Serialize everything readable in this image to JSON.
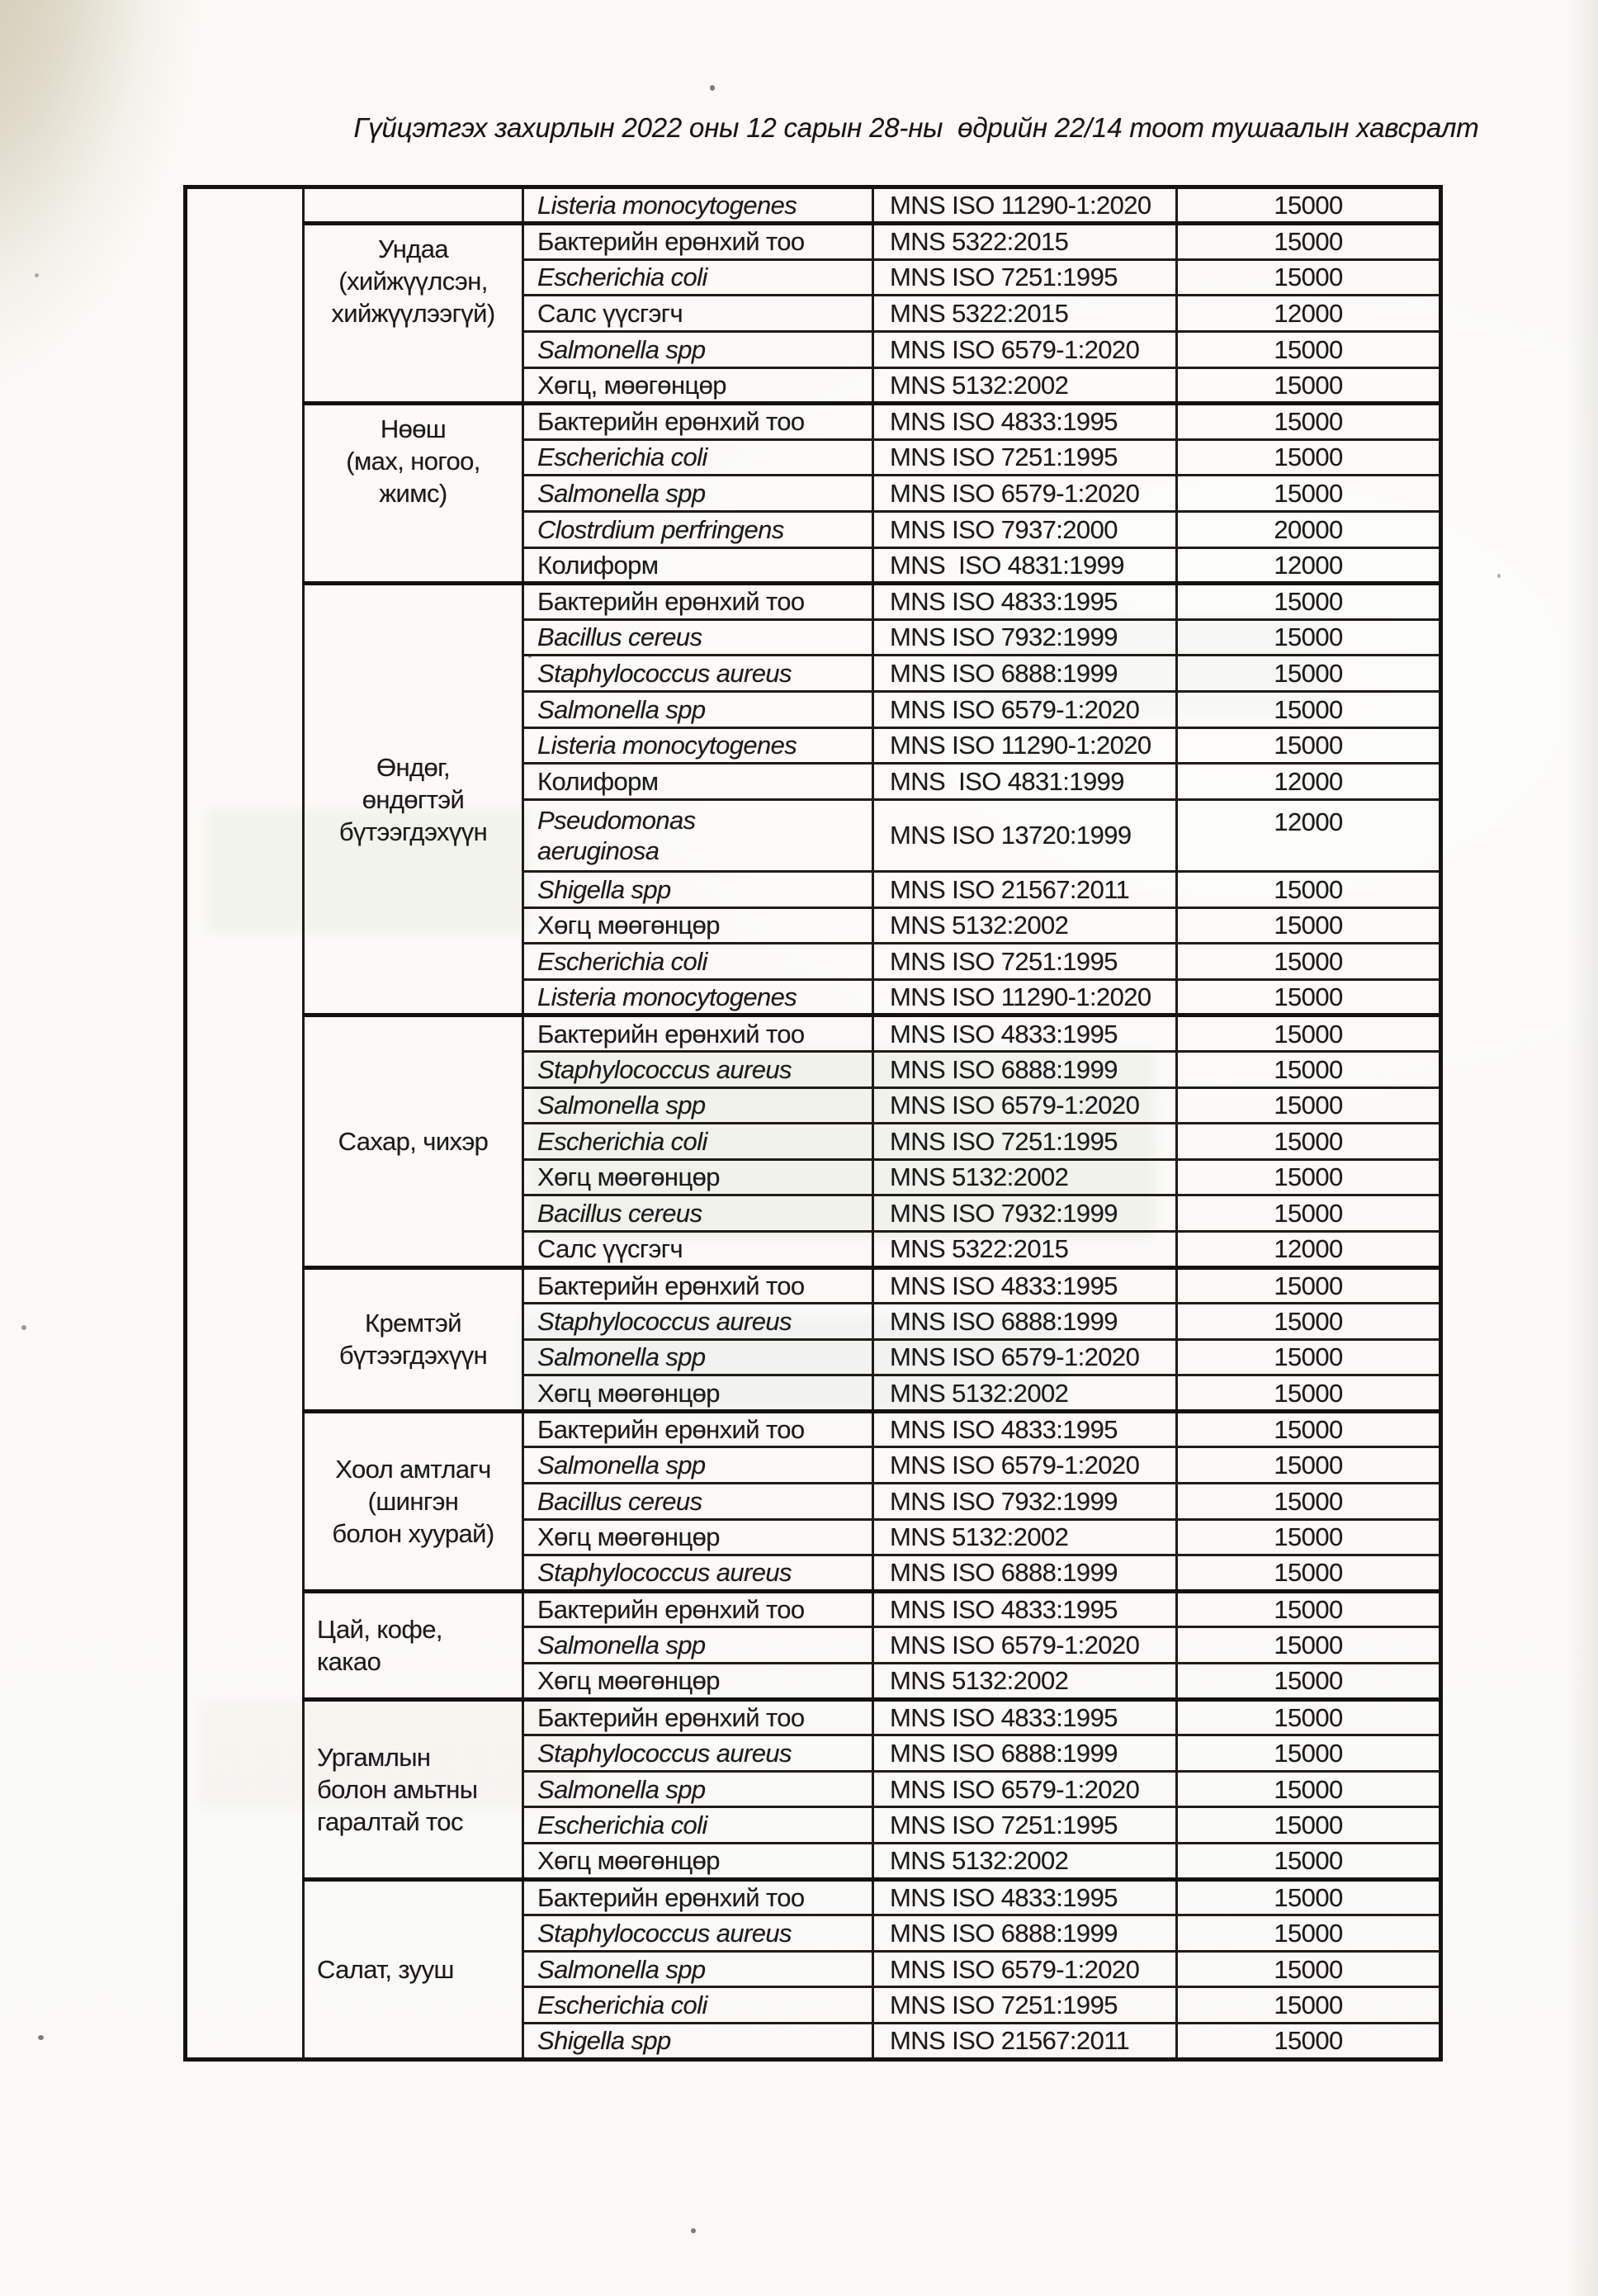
{
  "header": {
    "note": "Гүйцэтгэх захирлын 2022 оны 12 сарын 28-ны  өдрийн 22/14 тоот тушаалын хавсралт"
  },
  "table": {
    "sections": [
      {
        "category": "",
        "category_display": "",
        "rows": [
          {
            "test": "Listeria monocytogenes",
            "italic": true,
            "standard": "MNS ISO 11290-1:2020",
            "price": "15000"
          }
        ]
      },
      {
        "category": "Ундаа (хийжүүлсэн, хийжүүлээгүй)",
        "category_display": "Ундаа\n(хийжүүлсэн,\nхийжүүлээгүй)",
        "halign": "center",
        "valign": "top",
        "rows": [
          {
            "test": "Бактерийн ерөнхий тоо",
            "italic": false,
            "standard": "MNS 5322:2015",
            "price": "15000"
          },
          {
            "test": "Escherichia coli",
            "italic": true,
            "standard": "MNS ISO 7251:1995",
            "price": "15000"
          },
          {
            "test": "Салс үүсгэгч",
            "italic": false,
            "standard": "MNS 5322:2015",
            "price": "12000"
          },
          {
            "test": "Salmonella spp",
            "italic": true,
            "standard": "MNS ISO 6579-1:2020",
            "price": "15000"
          },
          {
            "test": "Хөгц, мөөгөнцөр",
            "italic": false,
            "standard": "MNS 5132:2002",
            "price": "15000"
          }
        ]
      },
      {
        "category": "Нөөш (мах, ногоо, жимс)",
        "category_display": "Нөөш\n(мах, ногоо,\nжимс)",
        "halign": "center",
        "valign": "top",
        "rows": [
          {
            "test": "Бактерийн ерөнхий тоо",
            "italic": false,
            "standard": "MNS ISO 4833:1995",
            "price": "15000"
          },
          {
            "test": "Escherichia coli",
            "italic": true,
            "standard": "MNS ISO 7251:1995",
            "price": "15000"
          },
          {
            "test": "Salmonella spp",
            "italic": true,
            "standard": "MNS ISO 6579-1:2020",
            "price": "15000"
          },
          {
            "test": "Clostrdium perfringens",
            "italic": true,
            "standard": "MNS ISO 7937:2000",
            "price": "20000"
          },
          {
            "test": "Колиформ",
            "italic": false,
            "standard": "MNS  ISO 4831:1999",
            "price": "12000"
          }
        ]
      },
      {
        "category": "Өндөг, өндөгтэй бүтээгдэхүүн",
        "category_display": "Өндөг,\nөндөгтэй\nбүтээгдэхүүн",
        "halign": "center",
        "valign": "middle",
        "rows": [
          {
            "test": "Бактерийн ерөнхий тоо",
            "italic": false,
            "standard": "MNS ISO 4833:1995",
            "price": "15000"
          },
          {
            "test": "Bacillus cereus",
            "italic": true,
            "standard": "MNS ISO 7932:1999",
            "price": "15000"
          },
          {
            "test": "Staphylococcus aureus",
            "italic": true,
            "standard": "MNS ISO 6888:1999",
            "price": "15000"
          },
          {
            "test": "Salmonella spp",
            "italic": true,
            "standard": "MNS ISO 6579-1:2020",
            "price": "15000"
          },
          {
            "test": "Listeria monocytogenes",
            "italic": true,
            "standard": "MNS ISO 11290-1:2020",
            "price": "15000"
          },
          {
            "test": "Колиформ",
            "italic": false,
            "standard": "MNS  ISO 4831:1999",
            "price": "12000"
          },
          {
            "test": "Pseudomonas aeruginosa",
            "test_display": "Pseudomonas\naeruginosa",
            "italic": true,
            "tall": true,
            "standard": "MNS ISO 13720:1999",
            "price": "12000"
          },
          {
            "test": "Shigella spp",
            "italic": true,
            "standard": "MNS ISO 21567:2011",
            "price": "15000"
          },
          {
            "test": "Хөгц мөөгөнцөр",
            "italic": false,
            "standard": "MNS 5132:2002",
            "price": "15000"
          },
          {
            "test": "Escherichia coli",
            "italic": true,
            "standard": "MNS ISO 7251:1995",
            "price": "15000"
          },
          {
            "test": "Listeria monocytogenes",
            "italic": true,
            "standard": "MNS ISO 11290-1:2020",
            "price": "15000"
          }
        ]
      },
      {
        "category": "Сахар, чихэр",
        "category_display": "Сахар, чихэр",
        "halign": "center",
        "valign": "middle",
        "rows": [
          {
            "test": "Бактерийн ерөнхий тоо",
            "italic": false,
            "standard": "MNS ISO 4833:1995",
            "price": "15000"
          },
          {
            "test": "Staphylococcus aureus",
            "italic": true,
            "standard": "MNS ISO 6888:1999",
            "price": "15000"
          },
          {
            "test": "Salmonella spp",
            "italic": true,
            "standard": "MNS ISO 6579-1:2020",
            "price": "15000"
          },
          {
            "test": "Escherichia coli",
            "italic": true,
            "standard": "MNS ISO 7251:1995",
            "price": "15000"
          },
          {
            "test": "Хөгц мөөгөнцөр",
            "italic": false,
            "standard": "MNS 5132:2002",
            "price": "15000"
          },
          {
            "test": "Bacillus cereus",
            "italic": true,
            "standard": "MNS ISO 7932:1999",
            "price": "15000"
          },
          {
            "test": "Салс үүсгэгч",
            "italic": false,
            "standard": "MNS 5322:2015",
            "price": "12000"
          }
        ]
      },
      {
        "category": "Кремтэй бүтээгдэхүүн",
        "category_display": "Кремтэй\nбүтээгдэхүүн",
        "halign": "center",
        "valign": "middle",
        "rows": [
          {
            "test": "Бактерийн ерөнхий тоо",
            "italic": false,
            "standard": "MNS ISO 4833:1995",
            "price": "15000"
          },
          {
            "test": "Staphylococcus aureus",
            "italic": true,
            "standard": "MNS ISO 6888:1999",
            "price": "15000"
          },
          {
            "test": "Salmonella spp",
            "italic": true,
            "standard": "MNS ISO 6579-1:2020",
            "price": "15000"
          },
          {
            "test": "Хөгц мөөгөнцөр",
            "italic": false,
            "standard": "MNS 5132:2002",
            "price": "15000"
          }
        ]
      },
      {
        "category": "Хоол амтлагч (шингэн болон хуурай)",
        "category_display": "Хоол амтлагч\n(шингэн\nболон хуурай)",
        "halign": "center",
        "valign": "middle",
        "rows": [
          {
            "test": "Бактерийн ерөнхий тоо",
            "italic": false,
            "standard": "MNS ISO 4833:1995",
            "price": "15000"
          },
          {
            "test": "Salmonella spp",
            "italic": true,
            "standard": "MNS ISO 6579-1:2020",
            "price": "15000"
          },
          {
            "test": "Bacillus cereus",
            "italic": true,
            "standard": "MNS ISO 7932:1999",
            "price": "15000"
          },
          {
            "test": "Хөгц мөөгөнцөр",
            "italic": false,
            "standard": "MNS 5132:2002",
            "price": "15000"
          },
          {
            "test": "Staphylococcus aureus",
            "italic": true,
            "standard": "MNS ISO 6888:1999",
            "price": "15000"
          }
        ]
      },
      {
        "category": "Цай, кофе, какао",
        "category_display": "Цай, кофе,\nкакао",
        "halign": "left",
        "valign": "middle",
        "rows": [
          {
            "test": "Бактерийн ерөнхий тоо",
            "italic": false,
            "standard": "MNS ISO 4833:1995",
            "price": "15000"
          },
          {
            "test": "Salmonella spp",
            "italic": true,
            "standard": "MNS ISO 6579-1:2020",
            "price": "15000"
          },
          {
            "test": "Хөгц мөөгөнцөр",
            "italic": false,
            "standard": "MNS 5132:2002",
            "price": "15000"
          }
        ]
      },
      {
        "category": "Ургамлын болон амьтны гаралтай тос",
        "category_display": "Ургамлын\nболон амьтны\nгаралтай тос",
        "halign": "left",
        "valign": "middle",
        "rows": [
          {
            "test": "Бактерийн ерөнхий тоо",
            "italic": false,
            "standard": "MNS ISO 4833:1995",
            "price": "15000"
          },
          {
            "test": "Staphylococcus aureus",
            "italic": true,
            "standard": "MNS ISO 6888:1999",
            "price": "15000"
          },
          {
            "test": "Salmonella spp",
            "italic": true,
            "standard": "MNS ISO 6579-1:2020",
            "price": "15000"
          },
          {
            "test": "Escherichia coli",
            "italic": true,
            "standard": "MNS ISO 7251:1995",
            "price": "15000"
          },
          {
            "test": "Хөгц мөөгөнцөр",
            "italic": false,
            "standard": "MNS 5132:2002",
            "price": "15000"
          }
        ]
      },
      {
        "category": "Салат, зууш",
        "category_display": "Салат, зууш",
        "halign": "left",
        "valign": "middle",
        "rows": [
          {
            "test": "Бактерийн ерөнхий тоо",
            "italic": false,
            "standard": "MNS ISO 4833:1995",
            "price": "15000"
          },
          {
            "test": "Staphylococcus aureus",
            "italic": true,
            "standard": "MNS ISO 6888:1999",
            "price": "15000"
          },
          {
            "test": "Salmonella spp",
            "italic": true,
            "standard": "MNS ISO 6579-1:2020",
            "price": "15000"
          },
          {
            "test": "Escherichia coli",
            "italic": true,
            "standard": "MNS ISO 7251:1995",
            "price": "15000"
          },
          {
            "test": "Shigella spp",
            "italic": true,
            "standard": "MNS ISO 21567:2011",
            "price": "15000"
          }
        ]
      }
    ]
  }
}
